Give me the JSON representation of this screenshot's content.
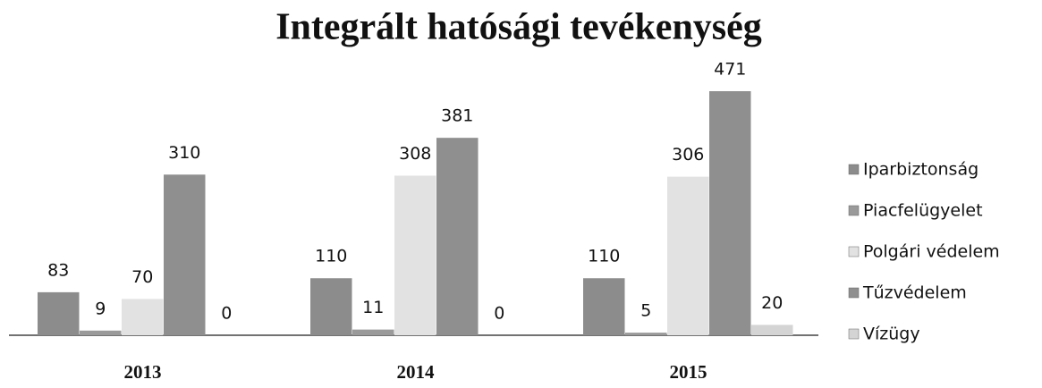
{
  "chart_data": {
    "type": "bar",
    "title": "Integrált hatósági tevékenység",
    "categories": [
      "2013",
      "2014",
      "2015"
    ],
    "series": [
      {
        "name": "Iparbiztonság",
        "color": "#8c8c8c",
        "values": [
          83,
          110,
          110
        ]
      },
      {
        "name": "Piacfelügyelet",
        "color": "#9a9a9a",
        "values": [
          9,
          11,
          5
        ]
      },
      {
        "name": "Polgári védelem",
        "color": "#e2e2e2",
        "values": [
          70,
          308,
          306
        ]
      },
      {
        "name": "Tűzvédelem",
        "color": "#8f8f8f",
        "values": [
          310,
          381,
          471
        ]
      },
      {
        "name": "Vízügy",
        "color": "#d4d4d4",
        "values": [
          0,
          0,
          20
        ]
      }
    ],
    "legend": "right"
  }
}
